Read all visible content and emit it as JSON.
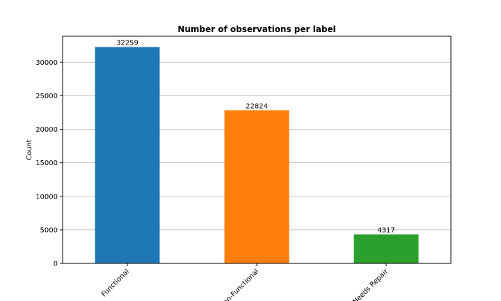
{
  "chart_data": {
    "type": "bar",
    "title": "Number of observations per label",
    "xlabel": "",
    "ylabel": "Count",
    "categories": [
      "Functional",
      "Non-Functional",
      "Needs Repair"
    ],
    "values": [
      32259,
      22824,
      4317
    ],
    "data_labels": [
      "32259",
      "22824",
      "4317"
    ],
    "colors": [
      "#1f77b4",
      "#ff7f0e",
      "#2ca02c"
    ],
    "ylim": [
      0,
      33871
    ],
    "yticks": [
      0,
      5000,
      10000,
      15000,
      20000,
      25000,
      30000
    ],
    "ytick_labels": [
      "0",
      "5000",
      "10000",
      "15000",
      "20000",
      "25000",
      "30000"
    ],
    "grid": "horizontal",
    "xtick_rotation": 45
  }
}
